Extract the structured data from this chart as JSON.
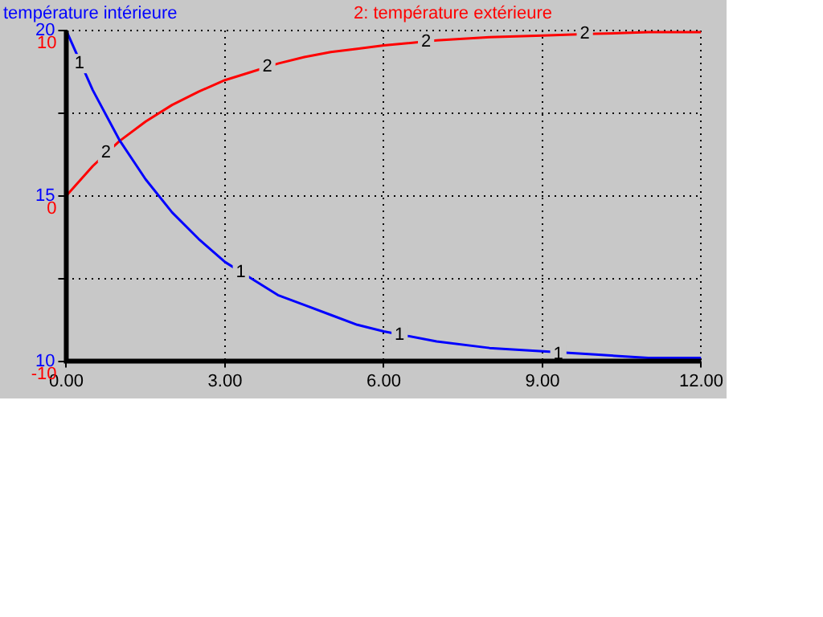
{
  "chart_data": {
    "type": "line",
    "x": [
      0,
      0.5,
      1,
      1.5,
      2,
      2.5,
      3,
      3.5,
      4,
      4.5,
      5,
      5.5,
      6,
      7,
      8,
      9,
      10,
      11,
      12
    ],
    "series": [
      {
        "name": "température intérieure",
        "color": "#0000ff",
        "values": [
          20,
          18.2,
          16.7,
          15.5,
          14.5,
          13.7,
          13.0,
          12.5,
          12.0,
          11.7,
          11.4,
          11.1,
          10.9,
          10.6,
          10.4,
          10.3,
          10.2,
          10.1,
          10.1
        ]
      },
      {
        "name": "2: température extérieure",
        "color": "#ff0000",
        "axis": "y2",
        "values": [
          0,
          1.8,
          3.3,
          4.5,
          5.5,
          6.3,
          7.0,
          7.5,
          8.0,
          8.4,
          8.7,
          8.9,
          9.1,
          9.4,
          9.6,
          9.7,
          9.8,
          9.9,
          9.9
        ]
      }
    ],
    "xlim": [
      0,
      12
    ],
    "xticks": [
      {
        "value": 0,
        "label": "0.00"
      },
      {
        "value": 3,
        "label": "3.00"
      },
      {
        "value": 6,
        "label": "6.00"
      },
      {
        "value": 9,
        "label": "9.00"
      },
      {
        "value": 12,
        "label": "12.00"
      }
    ],
    "ylim": [
      10,
      20
    ],
    "yticks": [
      10,
      {
        "value": 12.5,
        "label": null
      },
      15,
      {
        "value": 17.5,
        "label": null
      },
      20
    ],
    "y2lim": [
      -10,
      10
    ],
    "y2ticks": [
      -10,
      0,
      10
    ],
    "annotations": [
      {
        "text": "1",
        "x": 0.25,
        "y": 19.0
      },
      {
        "text": "1",
        "x": 3.3,
        "y": 12.7
      },
      {
        "text": "1",
        "x": 6.3,
        "y": 10.8
      },
      {
        "text": "1",
        "x": 9.3,
        "y": 10.2
      },
      {
        "text": "2",
        "x": 0.75,
        "y": 16.3
      },
      {
        "text": "2",
        "x": 3.8,
        "y": 18.9
      },
      {
        "text": "2",
        "x": 6.8,
        "y": 19.65
      },
      {
        "text": "2",
        "x": 9.8,
        "y": 19.9
      }
    ],
    "grid": true,
    "legend": "top",
    "marker": "none",
    "line_style": "solid"
  }
}
